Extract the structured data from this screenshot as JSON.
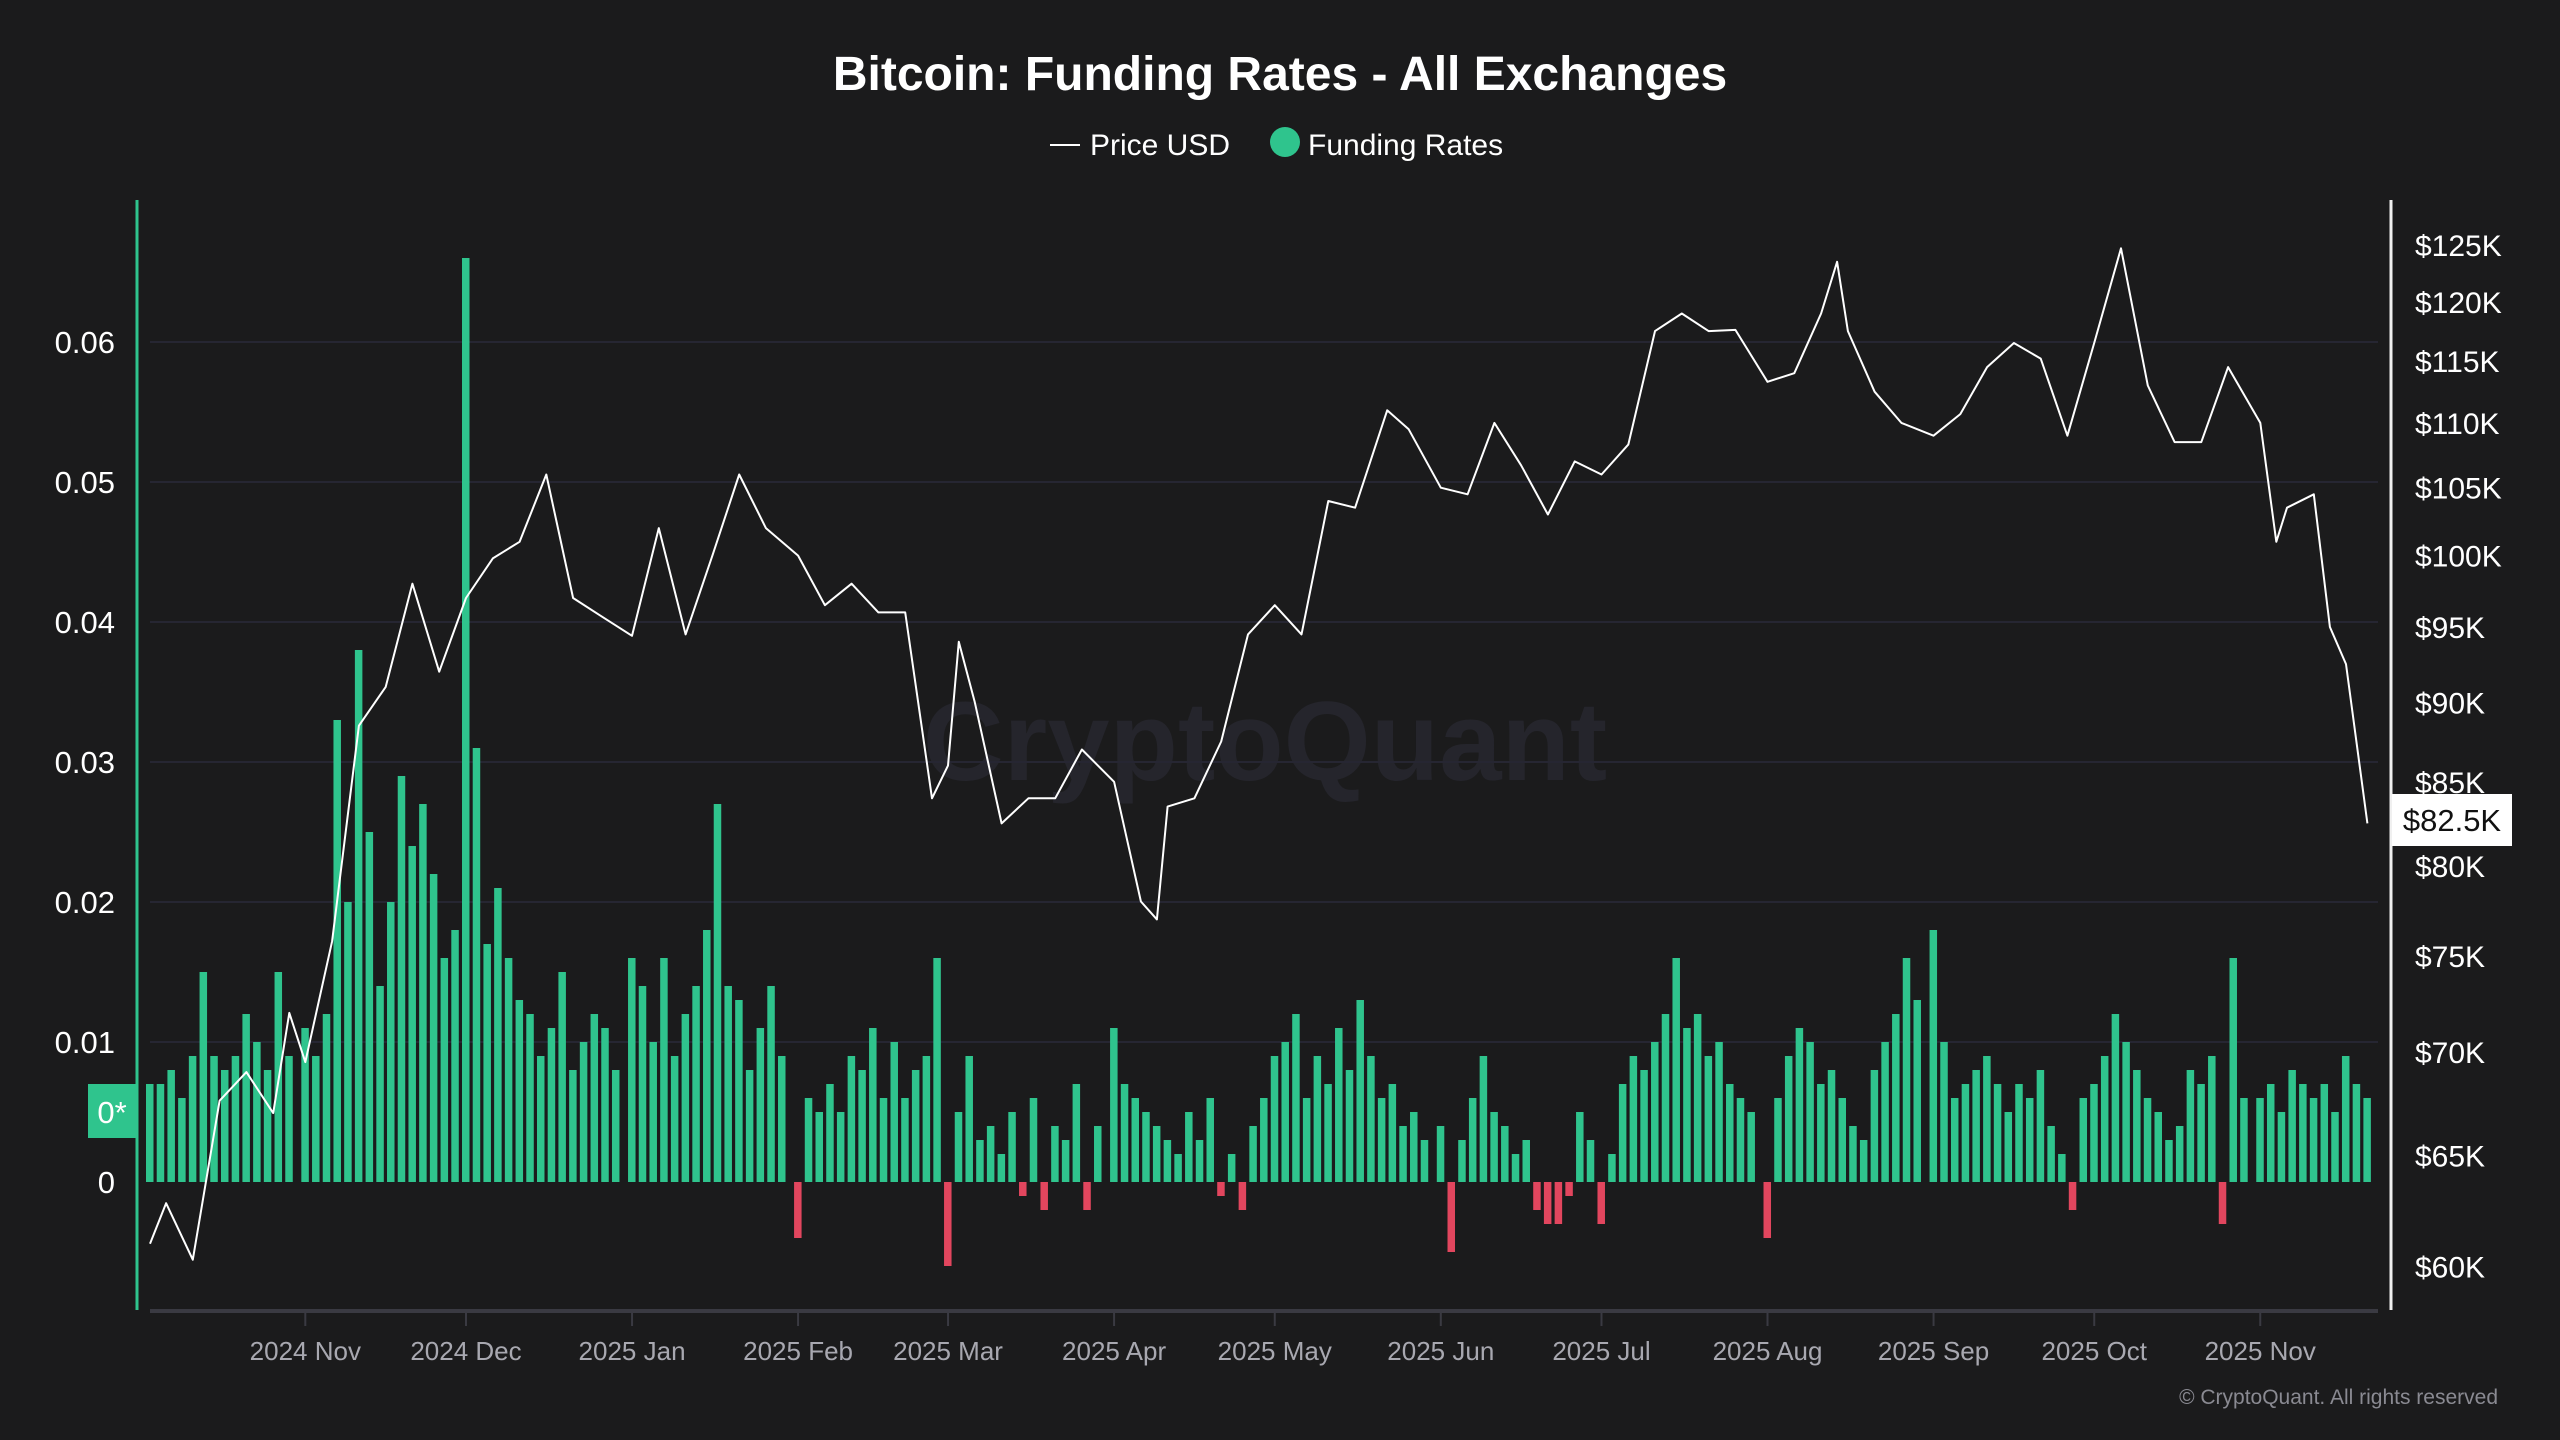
{
  "chart_data": {
    "type": "bar+line",
    "title": "Bitcoin: Funding Rates - All Exchanges",
    "legend": [
      {
        "name": "Price USD",
        "color": "#ffffff",
        "symbol": "line"
      },
      {
        "name": "Funding Rates",
        "color": "#2fc48d",
        "symbol": "dot"
      }
    ],
    "legend_position": "top-center",
    "grid": true,
    "colors": {
      "positive": "#2fc48d",
      "negative": "#e2465e",
      "price": "#ffffff",
      "background": "#1b1b1c"
    },
    "x_ticks": [
      "2024 Nov",
      "2024 Dec",
      "2025 Jan",
      "2025 Feb",
      "2025 Mar",
      "2025 Apr",
      "2025 May",
      "2025 Jun",
      "2025 Jul",
      "2025 Aug",
      "2025 Sep",
      "2025 Oct",
      "2025 Nov"
    ],
    "x_tick_dates": [
      "2024-11-01",
      "2024-12-01",
      "2025-01-01",
      "2025-02-01",
      "2025-03-01",
      "2025-04-01",
      "2025-05-01",
      "2025-06-01",
      "2025-07-01",
      "2025-08-01",
      "2025-09-01",
      "2025-10-01",
      "2025-11-01"
    ],
    "x_range": [
      "2024-10-03",
      "2025-11-21"
    ],
    "y_left": {
      "ticks": [
        "0",
        "0.01",
        "0.02",
        "0.03",
        "0.04",
        "0.05",
        "0.06"
      ],
      "tick_values": [
        0,
        0.01,
        0.02,
        0.03,
        0.04,
        0.05,
        0.06
      ],
      "current_label": "0*",
      "current_value": 0.0052
    },
    "y_right": {
      "scale": "log",
      "ticks": [
        "$60K",
        "$65K",
        "$70K",
        "$75K",
        "$80K",
        "$85K",
        "$90K",
        "$95K",
        "$100K",
        "$105K",
        "$110K",
        "$115K",
        "$120K",
        "$125K"
      ],
      "tick_values": [
        60000,
        65000,
        70000,
        75000,
        80000,
        85000,
        90000,
        95000,
        100000,
        105000,
        110000,
        115000,
        120000,
        125000
      ],
      "current_label": "$82.5K",
      "current_value": 82500
    },
    "funding_rates": {
      "months": [
        {
          "month": "2024-10",
          "days": [
            3,
            5,
            7,
            9,
            11,
            13,
            15,
            17,
            19,
            21,
            23,
            25,
            27,
            29
          ],
          "values": [
            0.007,
            0.007,
            0.008,
            0.006,
            0.009,
            0.015,
            0.009,
            0.008,
            0.009,
            0.012,
            0.01,
            0.008,
            0.015,
            0.009
          ]
        },
        {
          "month": "2024-11",
          "days": [
            1,
            3,
            5,
            7,
            9,
            11,
            13,
            15,
            17,
            19,
            21,
            23,
            25,
            27,
            29
          ],
          "values": [
            0.011,
            0.009,
            0.012,
            0.033,
            0.02,
            0.038,
            0.025,
            0.014,
            0.02,
            0.029,
            0.024,
            0.027,
            0.022,
            0.016,
            0.018
          ]
        },
        {
          "month": "2024-12",
          "days": [
            1,
            3,
            5,
            7,
            9,
            11,
            13,
            15,
            17,
            19,
            21,
            23,
            25,
            27,
            29
          ],
          "values": [
            0.066,
            0.031,
            0.017,
            0.021,
            0.016,
            0.013,
            0.012,
            0.009,
            0.011,
            0.015,
            0.008,
            0.01,
            0.012,
            0.011,
            0.008
          ]
        },
        {
          "month": "2025-01",
          "days": [
            1,
            3,
            5,
            7,
            9,
            11,
            13,
            15,
            17,
            19,
            21,
            23,
            25,
            27,
            29
          ],
          "values": [
            0.016,
            0.014,
            0.01,
            0.016,
            0.009,
            0.012,
            0.014,
            0.018,
            0.027,
            0.014,
            0.013,
            0.008,
            0.011,
            0.014,
            0.009
          ]
        },
        {
          "month": "2025-02",
          "days": [
            1,
            3,
            5,
            7,
            9,
            11,
            13,
            15,
            17,
            19,
            21,
            23,
            25,
            27
          ],
          "values": [
            -0.004,
            0.006,
            0.005,
            0.007,
            0.005,
            0.009,
            0.008,
            0.011,
            0.006,
            0.01,
            0.006,
            0.008,
            0.009,
            0.016
          ]
        },
        {
          "month": "2025-03",
          "days": [
            1,
            3,
            5,
            7,
            9,
            11,
            13,
            15,
            17,
            19,
            21,
            23,
            25,
            27,
            29
          ],
          "values": [
            -0.006,
            0.005,
            0.009,
            0.003,
            0.004,
            0.002,
            0.005,
            -0.001,
            0.006,
            -0.002,
            0.004,
            0.003,
            0.007,
            -0.002,
            0.004
          ]
        },
        {
          "month": "2025-04",
          "days": [
            1,
            3,
            5,
            7,
            9,
            11,
            13,
            15,
            17,
            19,
            21,
            23,
            25,
            27,
            29
          ],
          "values": [
            0.011,
            0.007,
            0.006,
            0.005,
            0.004,
            0.003,
            0.002,
            0.005,
            0.003,
            0.006,
            -0.001,
            0.002,
            -0.002,
            0.004,
            0.006
          ]
        },
        {
          "month": "2025-05",
          "days": [
            1,
            3,
            5,
            7,
            9,
            11,
            13,
            15,
            17,
            19,
            21,
            23,
            25,
            27,
            29
          ],
          "values": [
            0.009,
            0.01,
            0.012,
            0.006,
            0.009,
            0.007,
            0.011,
            0.008,
            0.013,
            0.009,
            0.006,
            0.007,
            0.004,
            0.005,
            0.003
          ]
        },
        {
          "month": "2025-06",
          "days": [
            1,
            3,
            5,
            7,
            9,
            11,
            13,
            15,
            17,
            19,
            21,
            23,
            25,
            27,
            29
          ],
          "values": [
            0.004,
            -0.005,
            0.003,
            0.006,
            0.009,
            0.005,
            0.004,
            0.002,
            0.003,
            -0.002,
            -0.003,
            -0.003,
            -0.001,
            0.005,
            0.003
          ]
        },
        {
          "month": "2025-07",
          "days": [
            1,
            3,
            5,
            7,
            9,
            11,
            13,
            15,
            17,
            19,
            21,
            23,
            25,
            27,
            29
          ],
          "values": [
            -0.003,
            0.002,
            0.007,
            0.009,
            0.008,
            0.01,
            0.012,
            0.016,
            0.011,
            0.012,
            0.009,
            0.01,
            0.007,
            0.006,
            0.005
          ]
        },
        {
          "month": "2025-08",
          "days": [
            1,
            3,
            5,
            7,
            9,
            11,
            13,
            15,
            17,
            19,
            21,
            23,
            25,
            27,
            29
          ],
          "values": [
            -0.004,
            0.006,
            0.009,
            0.011,
            0.01,
            0.007,
            0.008,
            0.006,
            0.004,
            0.003,
            0.008,
            0.01,
            0.012,
            0.016,
            0.013
          ]
        },
        {
          "month": "2025-09",
          "days": [
            1,
            3,
            5,
            7,
            9,
            11,
            13,
            15,
            17,
            19,
            21,
            23,
            25,
            27,
            29
          ],
          "values": [
            0.018,
            0.01,
            0.006,
            0.007,
            0.008,
            0.009,
            0.007,
            0.005,
            0.007,
            0.006,
            0.008,
            0.004,
            0.002,
            -0.002,
            0.006
          ]
        },
        {
          "month": "2025-10",
          "days": [
            1,
            3,
            5,
            7,
            9,
            11,
            13,
            15,
            17,
            19,
            21,
            23,
            25,
            27,
            29
          ],
          "values": [
            0.007,
            0.009,
            0.012,
            0.01,
            0.008,
            0.006,
            0.005,
            0.003,
            0.004,
            0.008,
            0.007,
            0.009,
            -0.003,
            0.016,
            0.006
          ]
        },
        {
          "month": "2025-11",
          "days": [
            1,
            3,
            5,
            7,
            9,
            11,
            13,
            15,
            17,
            19,
            21
          ],
          "values": [
            0.006,
            0.007,
            0.005,
            0.008,
            0.007,
            0.006,
            0.007,
            0.005,
            0.009,
            0.007,
            0.006
          ]
        }
      ]
    },
    "price_usd": {
      "dates": [
        "2024-10-03",
        "2024-10-06",
        "2024-10-11",
        "2024-10-16",
        "2024-10-21",
        "2024-10-26",
        "2024-10-29",
        "2024-11-01",
        "2024-11-06",
        "2024-11-11",
        "2024-11-16",
        "2024-11-21",
        "2024-11-26",
        "2024-12-01",
        "2024-12-06",
        "2024-12-11",
        "2024-12-16",
        "2024-12-21",
        "2024-12-26",
        "2025-01-01",
        "2025-01-06",
        "2025-01-11",
        "2025-01-16",
        "2025-01-21",
        "2025-01-26",
        "2025-02-01",
        "2025-02-06",
        "2025-02-11",
        "2025-02-16",
        "2025-02-21",
        "2025-02-26",
        "2025-03-01",
        "2025-03-03",
        "2025-03-06",
        "2025-03-11",
        "2025-03-16",
        "2025-03-21",
        "2025-03-26",
        "2025-04-01",
        "2025-04-06",
        "2025-04-09",
        "2025-04-11",
        "2025-04-16",
        "2025-04-21",
        "2025-04-26",
        "2025-05-01",
        "2025-05-06",
        "2025-05-11",
        "2025-05-16",
        "2025-05-22",
        "2025-05-26",
        "2025-06-01",
        "2025-06-06",
        "2025-06-11",
        "2025-06-16",
        "2025-06-21",
        "2025-06-26",
        "2025-07-01",
        "2025-07-06",
        "2025-07-11",
        "2025-07-16",
        "2025-07-21",
        "2025-07-26",
        "2025-08-01",
        "2025-08-06",
        "2025-08-11",
        "2025-08-14",
        "2025-08-16",
        "2025-08-21",
        "2025-08-26",
        "2025-09-01",
        "2025-09-06",
        "2025-09-11",
        "2025-09-16",
        "2025-09-21",
        "2025-09-26",
        "2025-10-01",
        "2025-10-06",
        "2025-10-11",
        "2025-10-16",
        "2025-10-21",
        "2025-10-26",
        "2025-11-01",
        "2025-11-04",
        "2025-11-06",
        "2025-11-11",
        "2025-11-14",
        "2025-11-17",
        "2025-11-21"
      ],
      "values": [
        61000,
        62800,
        60300,
        67600,
        69000,
        67000,
        72000,
        69500,
        75800,
        88500,
        91000,
        98000,
        92000,
        97000,
        99800,
        101000,
        106000,
        97000,
        95800,
        94400,
        102000,
        94500,
        100000,
        106000,
        102000,
        100000,
        96500,
        98000,
        96000,
        96000,
        84000,
        86000,
        94000,
        90000,
        82500,
        84000,
        84000,
        87000,
        85000,
        78000,
        77000,
        83500,
        84000,
        87500,
        94500,
        96500,
        94500,
        104000,
        103500,
        111000,
        109500,
        105000,
        104500,
        110000,
        106700,
        103000,
        107000,
        106000,
        108300,
        117500,
        119000,
        117500,
        117600,
        113300,
        114000,
        119000,
        123500,
        117500,
        112500,
        110000,
        109000,
        110700,
        114500,
        116500,
        115200,
        109000,
        116500,
        124700,
        113000,
        108500,
        108500,
        114500,
        110000,
        101000,
        103500,
        104500,
        95000,
        92500,
        82500
      ]
    }
  },
  "watermark": "CryptoQuant",
  "copyright": "© CryptoQuant. All rights reserved"
}
